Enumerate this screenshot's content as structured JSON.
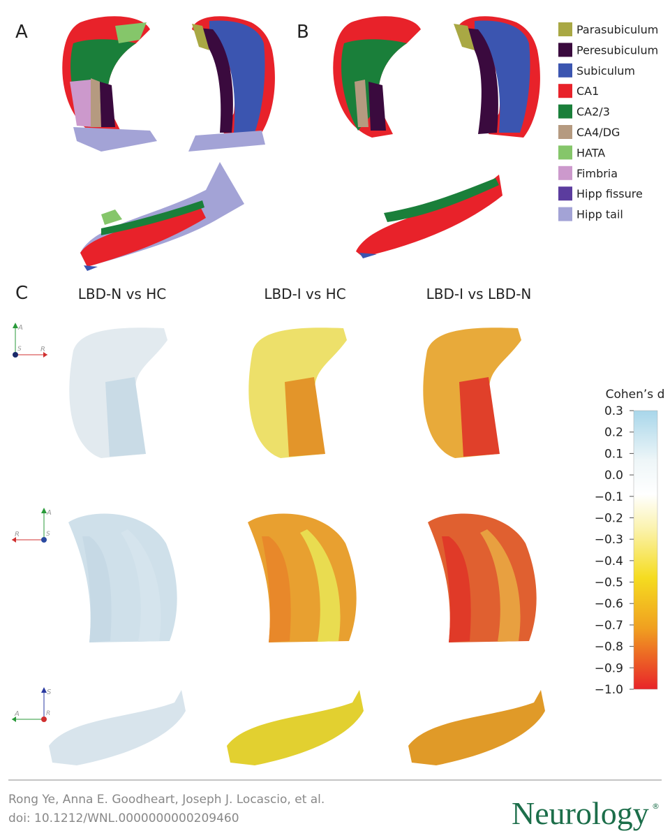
{
  "panel_labels": [
    "A",
    "B",
    "C"
  ],
  "legend": [
    {
      "label": "Parasubiculum",
      "color": "#a9a844"
    },
    {
      "label": "Peresubiculum",
      "color": "#3a0a3e"
    },
    {
      "label": "Subiculum",
      "color": "#3b55b0"
    },
    {
      "label": "CA1",
      "color": "#e8222a"
    },
    {
      "label": "CA2/3",
      "color": "#1a7f3a"
    },
    {
      "label": "CA4/DG",
      "color": "#b59a80"
    },
    {
      "label": "HATA",
      "color": "#85c66a"
    },
    {
      "label": "Fimbria",
      "color": "#cc99cc"
    },
    {
      "label": "Hipp fissure",
      "color": "#5b3c9e"
    },
    {
      "label": "Hipp tail",
      "color": "#a3a3d6"
    }
  ],
  "columns": [
    "LBD-N vs HC",
    "LBD-I vs HC",
    "LBD-I vs LBD-N"
  ],
  "orientation": [
    {
      "up": "A",
      "side": "R",
      "origin": "S"
    },
    {
      "up": "A",
      "side": "R",
      "origin": "S"
    },
    {
      "up": "S",
      "side": "A",
      "origin": "R"
    }
  ],
  "colorbar": {
    "title": "Cohen’s d",
    "lim": [
      -1.0,
      0.3
    ],
    "ticks": [
      0.3,
      0.2,
      0.1,
      {
        "value": 0.0,
        "label": "0.0"
      },
      {
        "value": -0.1,
        "label": "−0.1"
      },
      {
        "value": -0.2,
        "label": "−0.2"
      },
      {
        "value": -0.3,
        "label": "−0.3"
      },
      {
        "value": -0.4,
        "label": "−0.4"
      },
      {
        "value": -0.5,
        "label": "−0.5"
      },
      {
        "value": -0.6,
        "label": "−0.6"
      },
      {
        "value": -0.7,
        "label": "−0.7"
      },
      {
        "value": -0.8,
        "label": "−0.8"
      },
      {
        "value": -0.9,
        "label": "−0.9"
      },
      {
        "value": -1.0,
        "label": "−1.0"
      }
    ]
  },
  "footer": {
    "authors": "Rong Ye, Anna E. Goodheart, Joseph J. Locascio, et al.",
    "doi": "doi: 10.1212/WNL.0000000000209460",
    "journal": "Neurology",
    "mark": "®"
  }
}
